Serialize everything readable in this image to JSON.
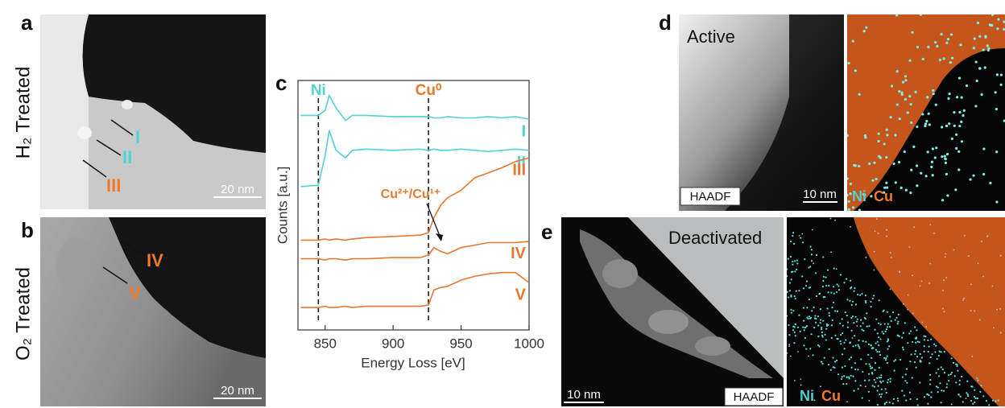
{
  "panels": {
    "a": {
      "letter": "a",
      "row_label": "H₂ Treated",
      "spots": [
        "I",
        "II",
        "III"
      ],
      "scale_bar": "20 nm"
    },
    "b": {
      "letter": "b",
      "row_label": "O₂ Treated",
      "spots": [
        "IV",
        "V"
      ],
      "scale_bar": "20 nm"
    },
    "c": {
      "letter": "c"
    },
    "d": {
      "letter": "d",
      "condition": "Active",
      "mode": "HAADF",
      "scale_bar": "10 nm",
      "elements": [
        "Ni",
        "Cu"
      ]
    },
    "e": {
      "letter": "e",
      "condition": "Deactivated",
      "mode": "HAADF",
      "scale_bar": "10 nm",
      "elements": [
        "Ni",
        "Cu"
      ]
    }
  },
  "chart_data": {
    "type": "line",
    "x_label": "Energy Loss [eV]",
    "y_label": "Counts [a.u.]",
    "xlim": [
      830,
      1000
    ],
    "xticks": [
      850,
      900,
      950,
      1000
    ],
    "ylim": [
      0,
      10
    ],
    "x": [
      832,
      845,
      850,
      853,
      858,
      865,
      870,
      880,
      900,
      920,
      926,
      930,
      935,
      940,
      950,
      960,
      970,
      980,
      990,
      1000
    ],
    "series": [
      {
        "name": "I",
        "color": "#4fd3d0",
        "values": [
          8.6,
          8.6,
          8.8,
          9.4,
          8.9,
          8.4,
          8.6,
          8.6,
          8.55,
          8.55,
          8.55,
          8.5,
          8.5,
          8.55,
          8.5,
          8.5,
          8.55,
          8.5,
          8.55,
          8.45
        ]
      },
      {
        "name": "II",
        "color": "#4fd3d0",
        "values": [
          5.75,
          5.8,
          7.0,
          8.0,
          7.2,
          6.9,
          7.2,
          7.25,
          7.2,
          7.25,
          7.2,
          7.25,
          7.2,
          7.2,
          7.25,
          7.2,
          7.15,
          7.2,
          7.25,
          7.2
        ]
      },
      {
        "name": "III",
        "color": "#e8772e",
        "values": [
          3.6,
          3.6,
          3.65,
          3.6,
          3.65,
          3.6,
          3.65,
          3.7,
          3.75,
          3.8,
          3.9,
          4.5,
          5.0,
          5.3,
          5.6,
          6.1,
          6.3,
          6.5,
          6.75,
          6.9
        ]
      },
      {
        "name": "IV",
        "color": "#e8772e",
        "values": [
          2.85,
          2.85,
          2.8,
          2.85,
          2.85,
          2.8,
          2.85,
          2.85,
          2.9,
          2.9,
          3.0,
          3.3,
          3.15,
          3.05,
          3.3,
          3.4,
          3.5,
          3.5,
          3.5,
          3.55
        ]
      },
      {
        "name": "V",
        "color": "#e8772e",
        "values": [
          0.9,
          0.9,
          0.95,
          0.9,
          0.9,
          0.95,
          0.9,
          0.95,
          0.95,
          0.95,
          1.0,
          1.6,
          1.7,
          1.75,
          2.0,
          2.15,
          2.25,
          2.3,
          2.3,
          1.9
        ]
      }
    ],
    "reference_lines": [
      {
        "value": 845,
        "label": "Ni",
        "color": "#4fd3d0"
      },
      {
        "value": 926,
        "label": "Cu⁰",
        "color": "#e8772e"
      }
    ],
    "annotation": {
      "text": "Cu²⁺/Cu¹⁺",
      "color": "#e8772e"
    }
  }
}
